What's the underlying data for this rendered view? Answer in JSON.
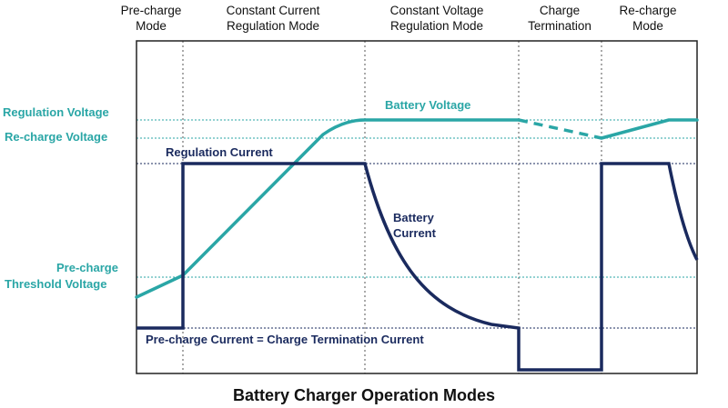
{
  "modes": [
    "Pre-charge\nMode",
    "Constant Current\nRegulation Mode",
    "Constant Voltage\nRegulation Mode",
    "Charge\nTermination",
    "Re-charge\nMode"
  ],
  "y_labels": {
    "regulation_voltage": "Regulation Voltage",
    "recharge_voltage": "Re-charge Voltage",
    "precharge_threshold_line1": "Pre-charge",
    "precharge_threshold_line2": "Threshold Voltage"
  },
  "annotations": {
    "battery_voltage": "Battery Voltage",
    "regulation_current": "Regulation Current",
    "battery_current_line1": "Battery",
    "battery_current_line2": "Current",
    "precharge_current": "Pre-charge Current = Charge Termination Current"
  },
  "title": "Battery Charger Operation Modes",
  "colors": {
    "voltage": "#2aa6a6",
    "current": "#1a2a5e",
    "frame": "#222222",
    "grid": "#555555"
  }
}
